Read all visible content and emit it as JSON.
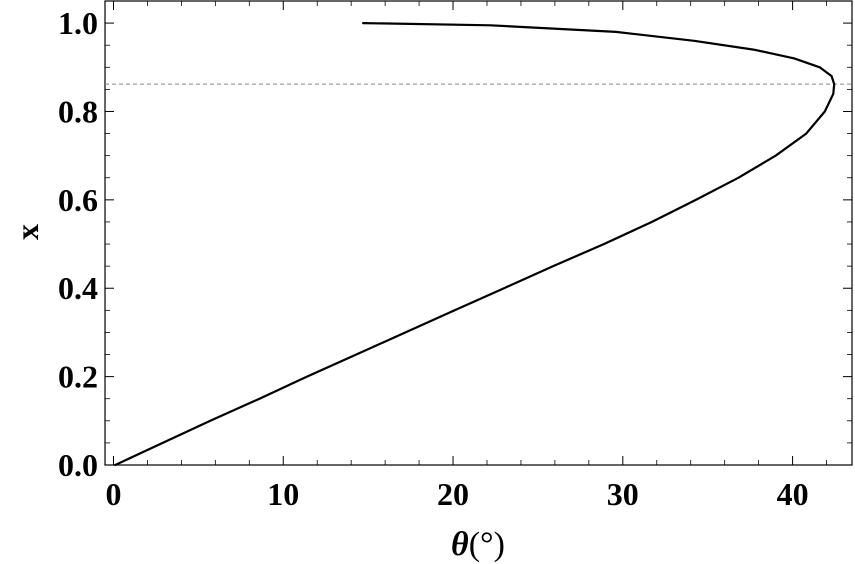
{
  "chart_data": {
    "type": "line",
    "title": "",
    "xlabel_symbol": "θ",
    "xlabel_unit": "(°)",
    "ylabel": "x",
    "xlim": [
      -0.5,
      43.5
    ],
    "ylim": [
      0.0,
      1.05
    ],
    "x_ticks": [
      0,
      10,
      20,
      30,
      40
    ],
    "x_tick_labels": [
      "0",
      "10",
      "20",
      "30",
      "40"
    ],
    "y_ticks": [
      0.0,
      0.2,
      0.4,
      0.6,
      0.8,
      1.0
    ],
    "y_tick_labels": [
      "0.0",
      "0.2",
      "0.4",
      "0.6",
      "0.8",
      "1.0"
    ],
    "grid": false,
    "legend": "none",
    "series": [
      {
        "color": "#000000",
        "points": [
          [
            0.1,
            0.0
          ],
          [
            2.9,
            0.05
          ],
          [
            5.7,
            0.1
          ],
          [
            8.6,
            0.15
          ],
          [
            11.4,
            0.2
          ],
          [
            14.3,
            0.25
          ],
          [
            17.2,
            0.3
          ],
          [
            20.1,
            0.35
          ],
          [
            23.0,
            0.4
          ],
          [
            25.9,
            0.45
          ],
          [
            28.9,
            0.5
          ],
          [
            31.7,
            0.55
          ],
          [
            34.3,
            0.6
          ],
          [
            36.8,
            0.65
          ],
          [
            39.0,
            0.7
          ],
          [
            40.8,
            0.75
          ],
          [
            41.9,
            0.8
          ],
          [
            42.4,
            0.84
          ],
          [
            42.45,
            0.862
          ],
          [
            42.3,
            0.88
          ],
          [
            41.6,
            0.9
          ],
          [
            40.1,
            0.92
          ],
          [
            37.7,
            0.94
          ],
          [
            34.2,
            0.96
          ],
          [
            29.6,
            0.98
          ],
          [
            22.2,
            0.995
          ],
          [
            14.7,
            1.0
          ]
        ]
      }
    ],
    "reference_lines": [
      {
        "axis": "y",
        "value": 0.862,
        "style": "dashed",
        "color": "#888888"
      }
    ]
  }
}
